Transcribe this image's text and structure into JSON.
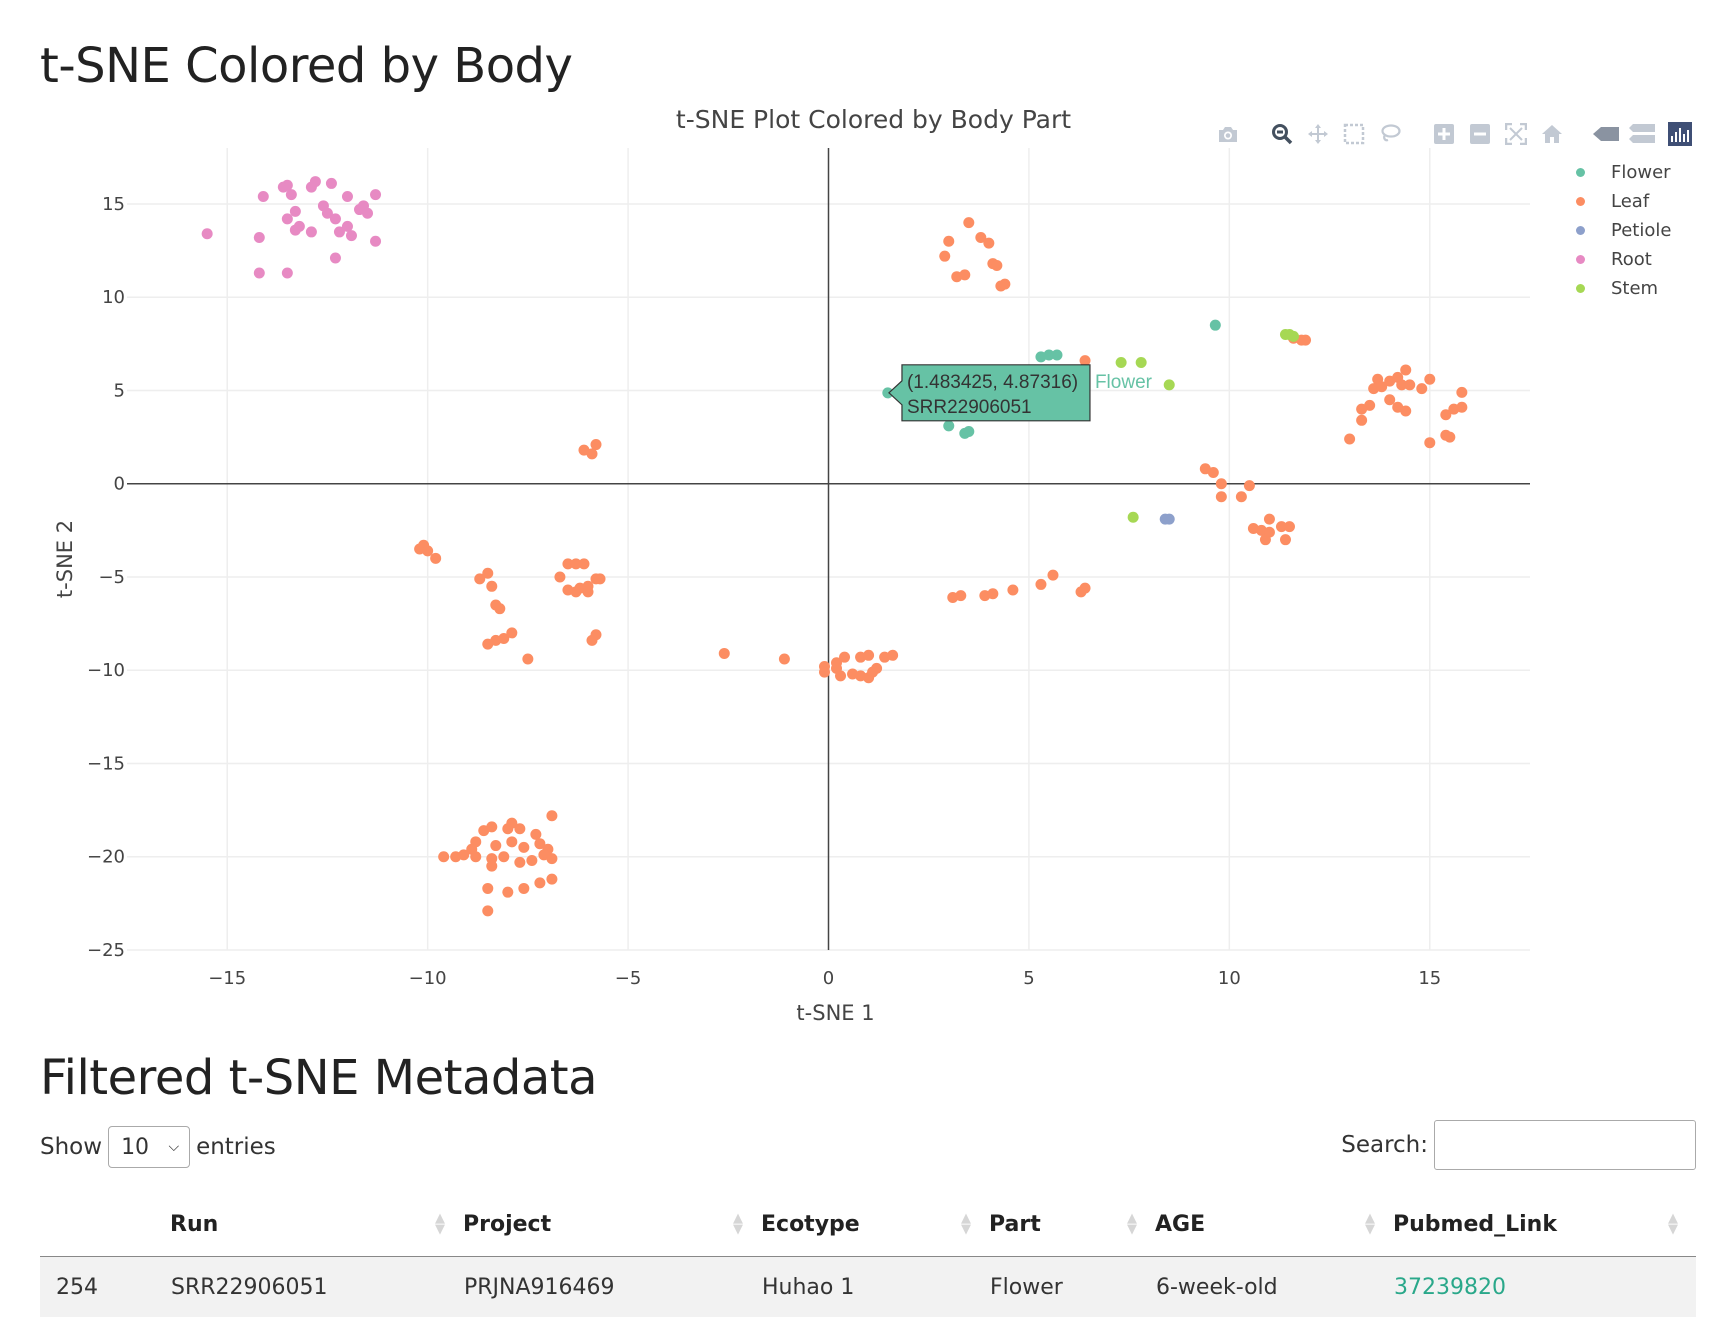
{
  "page": {
    "title": "t-SNE Colored by Body",
    "table_title": "Filtered t-SNE Metadata"
  },
  "modebar": {
    "icons": [
      "camera-icon",
      "zoom-icon",
      "pan-icon",
      "box-select-icon",
      "lasso-icon",
      "zoom-in-icon",
      "zoom-out-icon",
      "autoscale-icon",
      "reset-axes-icon",
      "spike-lines-icon",
      "compare-hover-icon",
      "plotly-logo-icon"
    ],
    "active": "zoom-icon"
  },
  "chart_data": {
    "type": "scatter",
    "title": "t-SNE Plot Colored by Body Part",
    "xlabel": "t-SNE 1",
    "ylabel": "t-SNE 2",
    "xlim": [
      -17.5,
      17.5
    ],
    "ylim": [
      -25,
      18
    ],
    "xticks": [
      -15,
      -10,
      -5,
      0,
      5,
      10,
      15
    ],
    "yticks": [
      -25,
      -20,
      -15,
      -10,
      -5,
      0,
      5,
      10,
      15
    ],
    "xtick_labels": [
      "−15",
      "−10",
      "−5",
      "0",
      "5",
      "10",
      "15"
    ],
    "ytick_labels": [
      "−25",
      "−20",
      "−15",
      "−10",
      "−5",
      "0",
      "5",
      "10",
      "15"
    ],
    "grid": true,
    "zeroline": true,
    "legend_position": "top-right",
    "series": [
      {
        "name": "Flower",
        "color": "#66c2a5",
        "points": [
          [
            1.48,
            4.87
          ],
          [
            9.65,
            8.5
          ],
          [
            5.3,
            6.8
          ],
          [
            5.5,
            6.9
          ],
          [
            5.7,
            6.9
          ],
          [
            3.5,
            2.8
          ],
          [
            3.4,
            2.7
          ],
          [
            3.0,
            3.1
          ]
        ]
      },
      {
        "name": "Leaf",
        "color": "#fc8d62",
        "points": [
          [
            3.5,
            14.0
          ],
          [
            3.0,
            13.0
          ],
          [
            2.9,
            12.2
          ],
          [
            3.8,
            13.2
          ],
          [
            4.0,
            12.9
          ],
          [
            4.1,
            11.8
          ],
          [
            4.2,
            11.7
          ],
          [
            3.2,
            11.1
          ],
          [
            3.4,
            11.2
          ],
          [
            4.3,
            10.6
          ],
          [
            4.4,
            10.7
          ],
          [
            6.4,
            6.6
          ],
          [
            11.6,
            7.8
          ],
          [
            11.8,
            7.7
          ],
          [
            11.9,
            7.7
          ],
          [
            14.2,
            5.7
          ],
          [
            14.4,
            6.1
          ],
          [
            14.0,
            5.5
          ],
          [
            13.7,
            5.6
          ],
          [
            13.6,
            5.1
          ],
          [
            13.8,
            5.2
          ],
          [
            14.3,
            5.3
          ],
          [
            14.5,
            5.3
          ],
          [
            14.8,
            5.1
          ],
          [
            15.0,
            5.6
          ],
          [
            15.8,
            4.9
          ],
          [
            13.5,
            4.2
          ],
          [
            13.3,
            4.0
          ],
          [
            13.3,
            3.4
          ],
          [
            14.0,
            4.5
          ],
          [
            14.2,
            4.1
          ],
          [
            14.4,
            3.9
          ],
          [
            15.4,
            3.7
          ],
          [
            15.6,
            4.0
          ],
          [
            15.8,
            4.1
          ],
          [
            13.0,
            2.4
          ],
          [
            15.0,
            2.2
          ],
          [
            15.4,
            2.6
          ],
          [
            15.5,
            2.5
          ],
          [
            -6.1,
            1.8
          ],
          [
            -5.9,
            1.6
          ],
          [
            -5.8,
            2.1
          ],
          [
            9.4,
            0.8
          ],
          [
            9.6,
            0.6
          ],
          [
            9.8,
            0.0
          ],
          [
            10.3,
            -0.7
          ],
          [
            9.8,
            -0.7
          ],
          [
            10.5,
            -0.1
          ],
          [
            10.6,
            -2.4
          ],
          [
            10.8,
            -2.5
          ],
          [
            11.0,
            -2.6
          ],
          [
            10.9,
            -3.0
          ],
          [
            11.0,
            -1.9
          ],
          [
            11.3,
            -2.3
          ],
          [
            11.4,
            -3.0
          ],
          [
            11.5,
            -2.3
          ],
          [
            -10.2,
            -3.5
          ],
          [
            -10.1,
            -3.3
          ],
          [
            -10.0,
            -3.6
          ],
          [
            -9.8,
            -4.0
          ],
          [
            -8.7,
            -5.1
          ],
          [
            -8.5,
            -4.8
          ],
          [
            -8.4,
            -5.5
          ],
          [
            -8.3,
            -6.5
          ],
          [
            -8.2,
            -6.7
          ],
          [
            -8.5,
            -8.6
          ],
          [
            -8.3,
            -8.4
          ],
          [
            -8.1,
            -8.3
          ],
          [
            -7.9,
            -8.0
          ],
          [
            -7.5,
            -9.4
          ],
          [
            -6.7,
            -5.0
          ],
          [
            -6.5,
            -4.3
          ],
          [
            -6.3,
            -4.3
          ],
          [
            -6.2,
            -5.6
          ],
          [
            -6.5,
            -5.7
          ],
          [
            -6.3,
            -5.8
          ],
          [
            -6.0,
            -5.5
          ],
          [
            -6.1,
            -4.3
          ],
          [
            -5.8,
            -5.1
          ],
          [
            -5.7,
            -5.1
          ],
          [
            -6.0,
            -5.8
          ],
          [
            -5.8,
            -8.1
          ],
          [
            -5.9,
            -8.4
          ],
          [
            3.1,
            -6.1
          ],
          [
            3.3,
            -6.0
          ],
          [
            3.9,
            -6.0
          ],
          [
            4.1,
            -5.9
          ],
          [
            4.6,
            -5.7
          ],
          [
            5.3,
            -5.4
          ],
          [
            5.6,
            -4.9
          ],
          [
            6.3,
            -5.8
          ],
          [
            6.4,
            -5.6
          ],
          [
            -2.6,
            -9.1
          ],
          [
            -1.1,
            -9.4
          ],
          [
            -0.1,
            -10.1
          ],
          [
            -0.1,
            -9.8
          ],
          [
            0.2,
            -9.6
          ],
          [
            0.2,
            -9.9
          ],
          [
            0.3,
            -10.3
          ],
          [
            0.4,
            -9.3
          ],
          [
            0.6,
            -10.2
          ],
          [
            0.8,
            -10.3
          ],
          [
            1.0,
            -10.4
          ],
          [
            0.8,
            -9.3
          ],
          [
            1.0,
            -9.2
          ],
          [
            1.1,
            -10.1
          ],
          [
            1.2,
            -9.9
          ],
          [
            1.4,
            -9.3
          ],
          [
            1.6,
            -9.2
          ],
          [
            -8.6,
            -18.6
          ],
          [
            -8.4,
            -18.4
          ],
          [
            -8.0,
            -18.5
          ],
          [
            -7.9,
            -18.2
          ],
          [
            -7.7,
            -18.5
          ],
          [
            -7.3,
            -18.8
          ],
          [
            -6.9,
            -17.8
          ],
          [
            -8.8,
            -19.2
          ],
          [
            -8.3,
            -19.4
          ],
          [
            -7.9,
            -19.2
          ],
          [
            -7.6,
            -19.5
          ],
          [
            -7.2,
            -19.3
          ],
          [
            -7.0,
            -19.6
          ],
          [
            -8.9,
            -19.6
          ],
          [
            -9.1,
            -19.9
          ],
          [
            -9.3,
            -20.0
          ],
          [
            -8.8,
            -20.0
          ],
          [
            -8.4,
            -20.1
          ],
          [
            -8.1,
            -20.0
          ],
          [
            -7.7,
            -20.3
          ],
          [
            -7.4,
            -20.2
          ],
          [
            -7.1,
            -19.9
          ],
          [
            -6.9,
            -20.1
          ],
          [
            -9.6,
            -20.0
          ],
          [
            -8.4,
            -20.5
          ],
          [
            -8.5,
            -21.7
          ],
          [
            -8.0,
            -21.9
          ],
          [
            -7.6,
            -21.7
          ],
          [
            -7.2,
            -21.4
          ],
          [
            -6.9,
            -21.2
          ],
          [
            -8.5,
            -22.9
          ]
        ]
      },
      {
        "name": "Petiole",
        "color": "#8da0cb",
        "points": [
          [
            8.4,
            -1.9
          ],
          [
            8.5,
            -1.9
          ]
        ]
      },
      {
        "name": "Root",
        "color": "#e78ac3",
        "points": [
          [
            -15.5,
            13.4
          ],
          [
            -14.1,
            15.4
          ],
          [
            -14.2,
            13.2
          ],
          [
            -14.2,
            11.3
          ],
          [
            -13.6,
            15.9
          ],
          [
            -13.5,
            16.0
          ],
          [
            -13.4,
            15.5
          ],
          [
            -13.5,
            14.2
          ],
          [
            -13.3,
            14.6
          ],
          [
            -13.5,
            11.3
          ],
          [
            -13.2,
            13.8
          ],
          [
            -13.3,
            13.6
          ],
          [
            -12.9,
            15.9
          ],
          [
            -12.8,
            16.2
          ],
          [
            -12.9,
            13.5
          ],
          [
            -12.6,
            14.9
          ],
          [
            -12.4,
            16.1
          ],
          [
            -12.5,
            14.5
          ],
          [
            -12.3,
            14.2
          ],
          [
            -12.2,
            13.5
          ],
          [
            -12.3,
            12.1
          ],
          [
            -12.0,
            15.4
          ],
          [
            -12.0,
            13.8
          ],
          [
            -11.7,
            14.7
          ],
          [
            -11.6,
            14.9
          ],
          [
            -11.5,
            14.5
          ],
          [
            -11.3,
            15.5
          ],
          [
            -11.3,
            13.0
          ],
          [
            -11.9,
            13.3
          ]
        ]
      },
      {
        "name": "Stem",
        "color": "#a6d854",
        "points": [
          [
            7.3,
            6.5
          ],
          [
            7.8,
            6.5
          ],
          [
            8.5,
            5.3
          ],
          [
            7.6,
            -1.8
          ],
          [
            11.4,
            8.0
          ],
          [
            11.5,
            8.0
          ],
          [
            11.6,
            7.9
          ]
        ]
      }
    ],
    "hover": {
      "x": 1.483425,
      "y": 4.87316,
      "label": "(1.483425, 4.87316)",
      "run": "SRR22906051",
      "series": "Flower"
    }
  },
  "controls": {
    "show_label": "Show",
    "entries_value": "10",
    "entries_label": "entries",
    "search_label": "Search:",
    "search_value": ""
  },
  "table": {
    "columns": [
      "",
      "Run",
      "Project",
      "Ecotype",
      "Part",
      "AGE",
      "Pubmed_Link"
    ],
    "rows": [
      [
        "254",
        "SRR22906051",
        "PRJNA916469",
        "Huhao 1",
        "Flower",
        "6-week-old",
        "37239820"
      ]
    ]
  }
}
